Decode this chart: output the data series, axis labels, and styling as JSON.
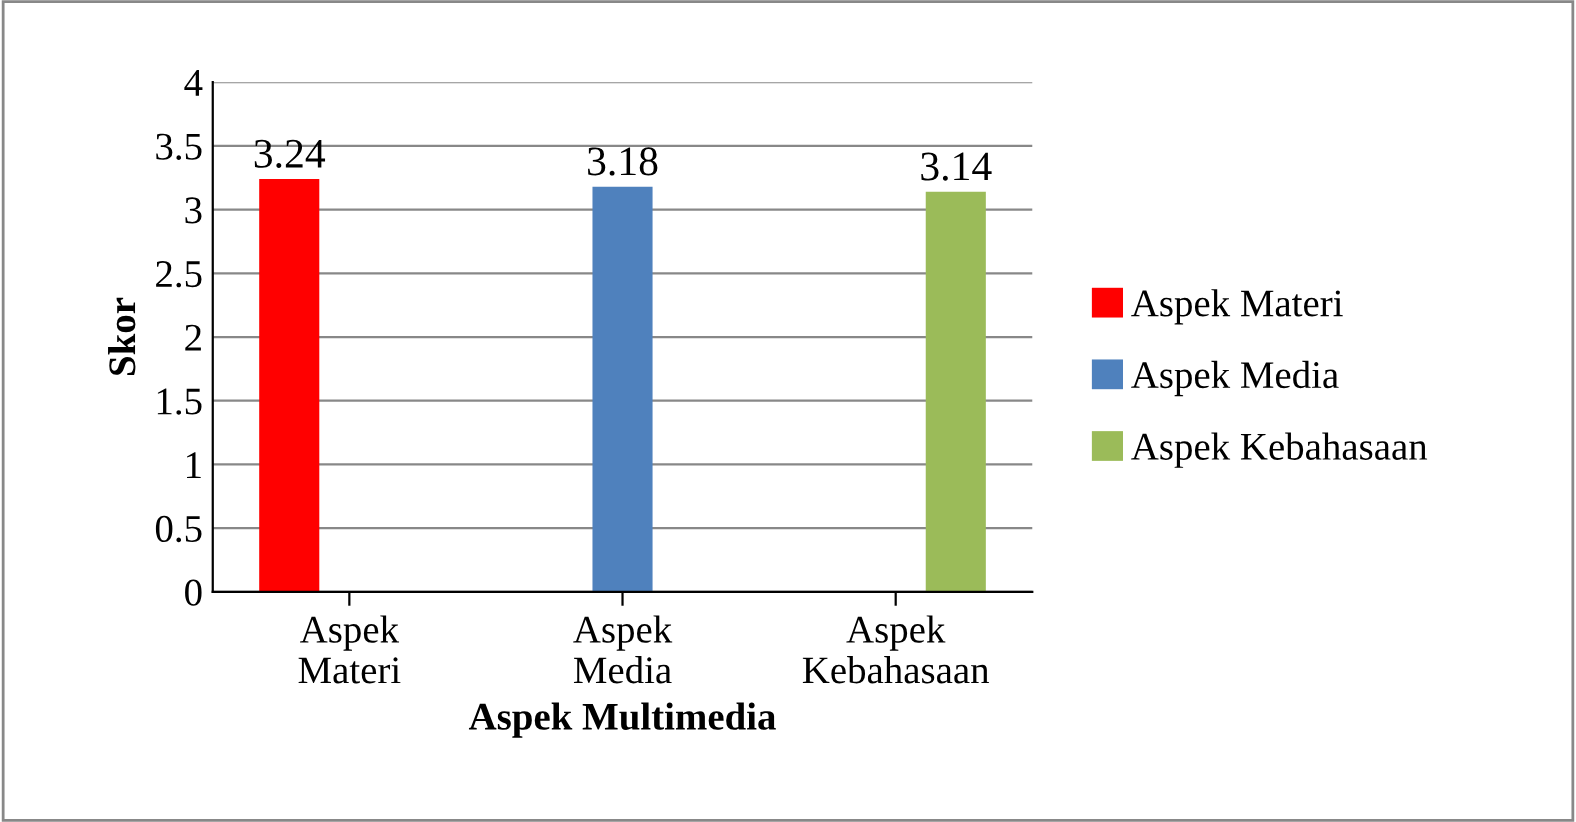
{
  "chart_data": {
    "type": "bar",
    "xlabel": "Aspek Multimedia",
    "ylabel": "Skor",
    "categories": [
      "Aspek\nMateri",
      "Aspek\nMedia",
      "Aspek\nKebahasaan"
    ],
    "series": [
      {
        "name": "Aspek Materi",
        "color": "#ff0000",
        "values": [
          3.24,
          null,
          null
        ]
      },
      {
        "name": "Aspek Media",
        "color": "#4f81bd",
        "values": [
          null,
          3.18,
          null
        ]
      },
      {
        "name": "Aspek Kebahasaan",
        "color": "#9bbb59",
        "values": [
          null,
          null,
          3.14
        ]
      }
    ],
    "ylim": [
      0,
      4
    ],
    "yticks": [
      0,
      0.5,
      1,
      1.5,
      2,
      2.5,
      3,
      3.5,
      4
    ],
    "grid": "y",
    "legend": "right",
    "data_labels": true
  }
}
